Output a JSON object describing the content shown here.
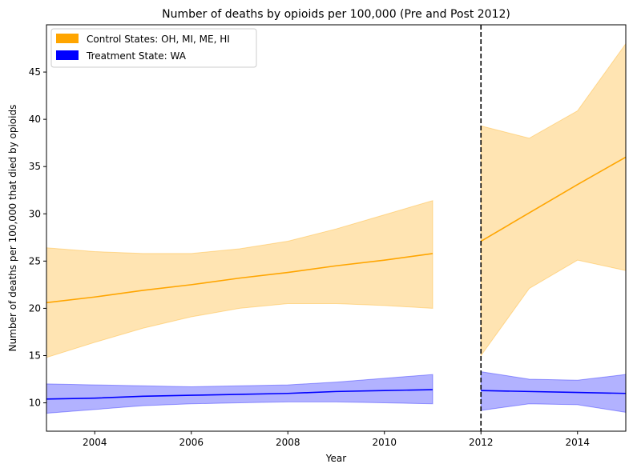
{
  "chart_data": {
    "type": "line",
    "title": "Number of deaths by opioids per 100,000 (Pre and Post 2012)",
    "xlabel": "Year",
    "ylabel": "Number of deaths per 100,000 that died by opioids",
    "xlim": [
      2003,
      2015
    ],
    "ylim": [
      7,
      50
    ],
    "x_ticks": [
      2004,
      2006,
      2008,
      2010,
      2012,
      2014
    ],
    "y_ticks": [
      10,
      15,
      20,
      25,
      30,
      35,
      40,
      45
    ],
    "grid": false,
    "legend_position": "top-left",
    "vertical_line": {
      "x": 2012,
      "style": "dashed",
      "color": "#000000"
    },
    "series": [
      {
        "name": "Control States: OH, MI, ME, HI",
        "color": "#ffa500",
        "segments": [
          {
            "x": [
              2003,
              2004,
              2005,
              2006,
              2007,
              2008,
              2009,
              2010,
              2011
            ],
            "line": [
              20.6,
              21.2,
              21.9,
              22.5,
              23.2,
              23.8,
              24.5,
              25.1,
              25.8
            ],
            "lower": [
              14.8,
              16.4,
              17.9,
              19.1,
              20.0,
              20.5,
              20.5,
              20.3,
              20.0
            ],
            "upper": [
              26.4,
              26.0,
              25.8,
              25.8,
              26.3,
              27.1,
              28.4,
              29.9,
              31.4
            ]
          },
          {
            "x": [
              2012,
              2013,
              2014,
              2015
            ],
            "line": [
              27.1,
              30.1,
              33.1,
              36.0
            ],
            "lower": [
              15.0,
              22.1,
              25.1,
              24.0
            ],
            "upper": [
              39.3,
              38.0,
              40.9,
              48.0
            ]
          }
        ]
      },
      {
        "name": "Treatment State: WA",
        "color": "#0000ff",
        "segments": [
          {
            "x": [
              2003,
              2004,
              2005,
              2006,
              2007,
              2008,
              2009,
              2010,
              2011
            ],
            "line": [
              10.4,
              10.5,
              10.7,
              10.8,
              10.9,
              11.0,
              11.2,
              11.3,
              11.4
            ],
            "lower": [
              8.9,
              9.3,
              9.7,
              9.9,
              10.0,
              10.1,
              10.1,
              10.0,
              9.9
            ],
            "upper": [
              12.0,
              11.9,
              11.8,
              11.7,
              11.8,
              11.9,
              12.2,
              12.6,
              13.0
            ]
          },
          {
            "x": [
              2012,
              2013,
              2014,
              2015
            ],
            "line": [
              11.3,
              11.2,
              11.1,
              11.0
            ],
            "lower": [
              9.2,
              9.9,
              9.8,
              9.0
            ],
            "upper": [
              13.3,
              12.5,
              12.4,
              13.0
            ]
          }
        ]
      }
    ]
  }
}
